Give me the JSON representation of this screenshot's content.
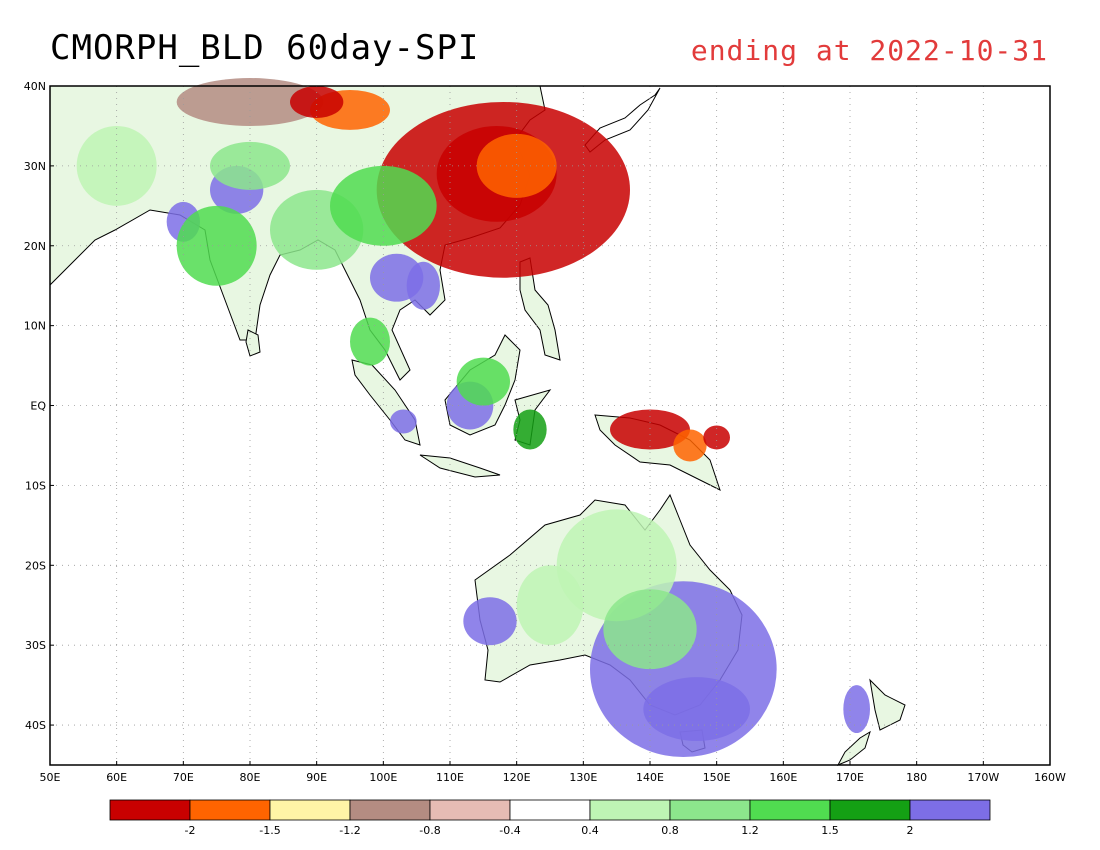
{
  "title": "CMORPH_BLD 60day-SPI",
  "subtitle": "ending at 2022-10-31",
  "colors": {
    "title_right": "#e23b3b",
    "frame": "#000000",
    "grid": "#9a9a9a",
    "land_bg": "#ffffff"
  },
  "map": {
    "lon_range": [
      50,
      200
    ],
    "lat_range": [
      -45,
      40
    ],
    "lon_labels": [
      "50E",
      "60E",
      "70E",
      "80E",
      "90E",
      "100E",
      "110E",
      "120E",
      "130E",
      "140E",
      "150E",
      "160E",
      "170E",
      "180",
      "170W",
      "160W"
    ],
    "lat_labels": [
      "40N",
      "30N",
      "20N",
      "10N",
      "EQ",
      "10S",
      "20S",
      "30S",
      "40S"
    ]
  },
  "legend": {
    "colors": [
      "#c80000",
      "#ff6400",
      "#fff5a6",
      "#b48c82",
      "#e6bcb4",
      "#ffffff",
      "#bef5b4",
      "#8ce68c",
      "#50dc50",
      "#14a014",
      "#7d6ee6"
    ],
    "labels": [
      "-2",
      "-1.5",
      "-1.2",
      "-0.8",
      "-0.4",
      "0.4",
      "0.8",
      "1.2",
      "1.5",
      "2"
    ]
  }
}
